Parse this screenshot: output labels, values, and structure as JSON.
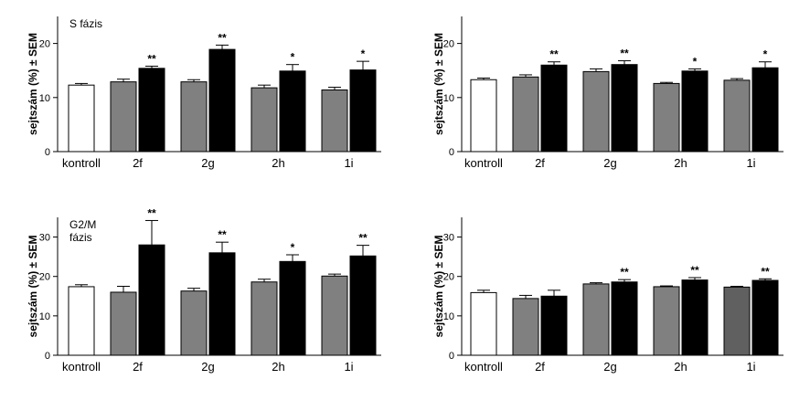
{
  "colors": {
    "control": "#ffffff",
    "grey": "#808080",
    "dark_grey": "#606060",
    "black": "#000000"
  },
  "chart_data": [
    {
      "type": "bar",
      "annotation": "S fázis",
      "ylabel": "sejtszám (%) ± SEM",
      "ylim": [
        0,
        25
      ],
      "yticks": [
        "0",
        "10",
        "20"
      ],
      "ytick_values": [
        0,
        10,
        20
      ],
      "categories": [
        "kontroll",
        "2f",
        "2g",
        "2h",
        "1i"
      ],
      "bars": [
        {
          "group": 0,
          "value": 12.3,
          "err": 0.3,
          "color": "white",
          "sig": ""
        },
        {
          "group": 1,
          "value": 12.9,
          "err": 0.5,
          "color": "grey",
          "sig": ""
        },
        {
          "group": 1,
          "value": 15.4,
          "err": 0.4,
          "color": "black",
          "sig": "**"
        },
        {
          "group": 2,
          "value": 12.9,
          "err": 0.4,
          "color": "grey",
          "sig": ""
        },
        {
          "group": 2,
          "value": 18.9,
          "err": 0.8,
          "color": "black",
          "sig": "**"
        },
        {
          "group": 3,
          "value": 11.8,
          "err": 0.5,
          "color": "grey",
          "sig": ""
        },
        {
          "group": 3,
          "value": 14.9,
          "err": 1.2,
          "color": "black",
          "sig": "*"
        },
        {
          "group": 4,
          "value": 11.4,
          "err": 0.5,
          "color": "grey",
          "sig": ""
        },
        {
          "group": 4,
          "value": 15.1,
          "err": 1.6,
          "color": "black",
          "sig": "*"
        }
      ]
    },
    {
      "type": "bar",
      "annotation": "",
      "ylabel": "sejtszám (%) ± SEM",
      "ylim": [
        0,
        25
      ],
      "yticks": [
        "0",
        "10",
        "20"
      ],
      "ytick_values": [
        0,
        10,
        20
      ],
      "categories": [
        "kontroll",
        "2f",
        "2g",
        "2h",
        "1i"
      ],
      "bars": [
        {
          "group": 0,
          "value": 13.3,
          "err": 0.3,
          "color": "white",
          "sig": ""
        },
        {
          "group": 1,
          "value": 13.8,
          "err": 0.4,
          "color": "grey",
          "sig": ""
        },
        {
          "group": 1,
          "value": 16.0,
          "err": 0.6,
          "color": "black",
          "sig": "**"
        },
        {
          "group": 2,
          "value": 14.8,
          "err": 0.5,
          "color": "grey",
          "sig": ""
        },
        {
          "group": 2,
          "value": 16.1,
          "err": 0.7,
          "color": "black",
          "sig": "**"
        },
        {
          "group": 3,
          "value": 12.6,
          "err": 0.2,
          "color": "grey",
          "sig": ""
        },
        {
          "group": 3,
          "value": 14.9,
          "err": 0.4,
          "color": "black",
          "sig": "*"
        },
        {
          "group": 4,
          "value": 13.2,
          "err": 0.3,
          "color": "grey",
          "sig": ""
        },
        {
          "group": 4,
          "value": 15.5,
          "err": 1.1,
          "color": "black",
          "sig": "*"
        }
      ]
    },
    {
      "type": "bar",
      "annotation": "G2/M\nfázis",
      "ylabel": "sejtszám (%) ± SEM",
      "ylim": [
        0,
        35
      ],
      "yticks": [
        "0",
        "10",
        "20",
        "30"
      ],
      "ytick_values": [
        0,
        10,
        20,
        30
      ],
      "categories": [
        "kontroll",
        "2f",
        "2g",
        "2h",
        "1i"
      ],
      "bars": [
        {
          "group": 0,
          "value": 17.4,
          "err": 0.5,
          "color": "white",
          "sig": ""
        },
        {
          "group": 1,
          "value": 16.0,
          "err": 1.5,
          "color": "grey",
          "sig": ""
        },
        {
          "group": 1,
          "value": 28.0,
          "err": 6.2,
          "color": "black",
          "sig": "**"
        },
        {
          "group": 2,
          "value": 16.3,
          "err": 0.7,
          "color": "grey",
          "sig": ""
        },
        {
          "group": 2,
          "value": 26.0,
          "err": 2.7,
          "color": "black",
          "sig": "**"
        },
        {
          "group": 3,
          "value": 18.6,
          "err": 0.7,
          "color": "grey",
          "sig": ""
        },
        {
          "group": 3,
          "value": 23.8,
          "err": 1.7,
          "color": "black",
          "sig": "*"
        },
        {
          "group": 4,
          "value": 20.1,
          "err": 0.5,
          "color": "grey",
          "sig": ""
        },
        {
          "group": 4,
          "value": 25.2,
          "err": 2.7,
          "color": "black",
          "sig": "**"
        }
      ]
    },
    {
      "type": "bar",
      "annotation": "",
      "ylabel": "sejtszám (%) ± SEM",
      "ylim": [
        0,
        35
      ],
      "yticks": [
        "0",
        "10",
        "20",
        "30"
      ],
      "ytick_values": [
        0,
        10,
        20,
        30
      ],
      "categories": [
        "kontroll",
        "2f",
        "2g",
        "2h",
        "1i"
      ],
      "bars": [
        {
          "group": 0,
          "value": 15.9,
          "err": 0.6,
          "color": "white",
          "sig": ""
        },
        {
          "group": 1,
          "value": 14.4,
          "err": 0.8,
          "color": "grey",
          "sig": ""
        },
        {
          "group": 1,
          "value": 15.0,
          "err": 1.5,
          "color": "black",
          "sig": ""
        },
        {
          "group": 2,
          "value": 18.1,
          "err": 0.3,
          "color": "grey",
          "sig": ""
        },
        {
          "group": 2,
          "value": 18.6,
          "err": 0.6,
          "color": "black",
          "sig": "**"
        },
        {
          "group": 3,
          "value": 17.4,
          "err": 0.2,
          "color": "grey",
          "sig": ""
        },
        {
          "group": 3,
          "value": 19.1,
          "err": 0.6,
          "color": "black",
          "sig": "**"
        },
        {
          "group": 4,
          "value": 17.3,
          "err": 0.2,
          "color": "dark_grey",
          "sig": ""
        },
        {
          "group": 4,
          "value": 19.0,
          "err": 0.4,
          "color": "black",
          "sig": "**"
        }
      ]
    }
  ]
}
